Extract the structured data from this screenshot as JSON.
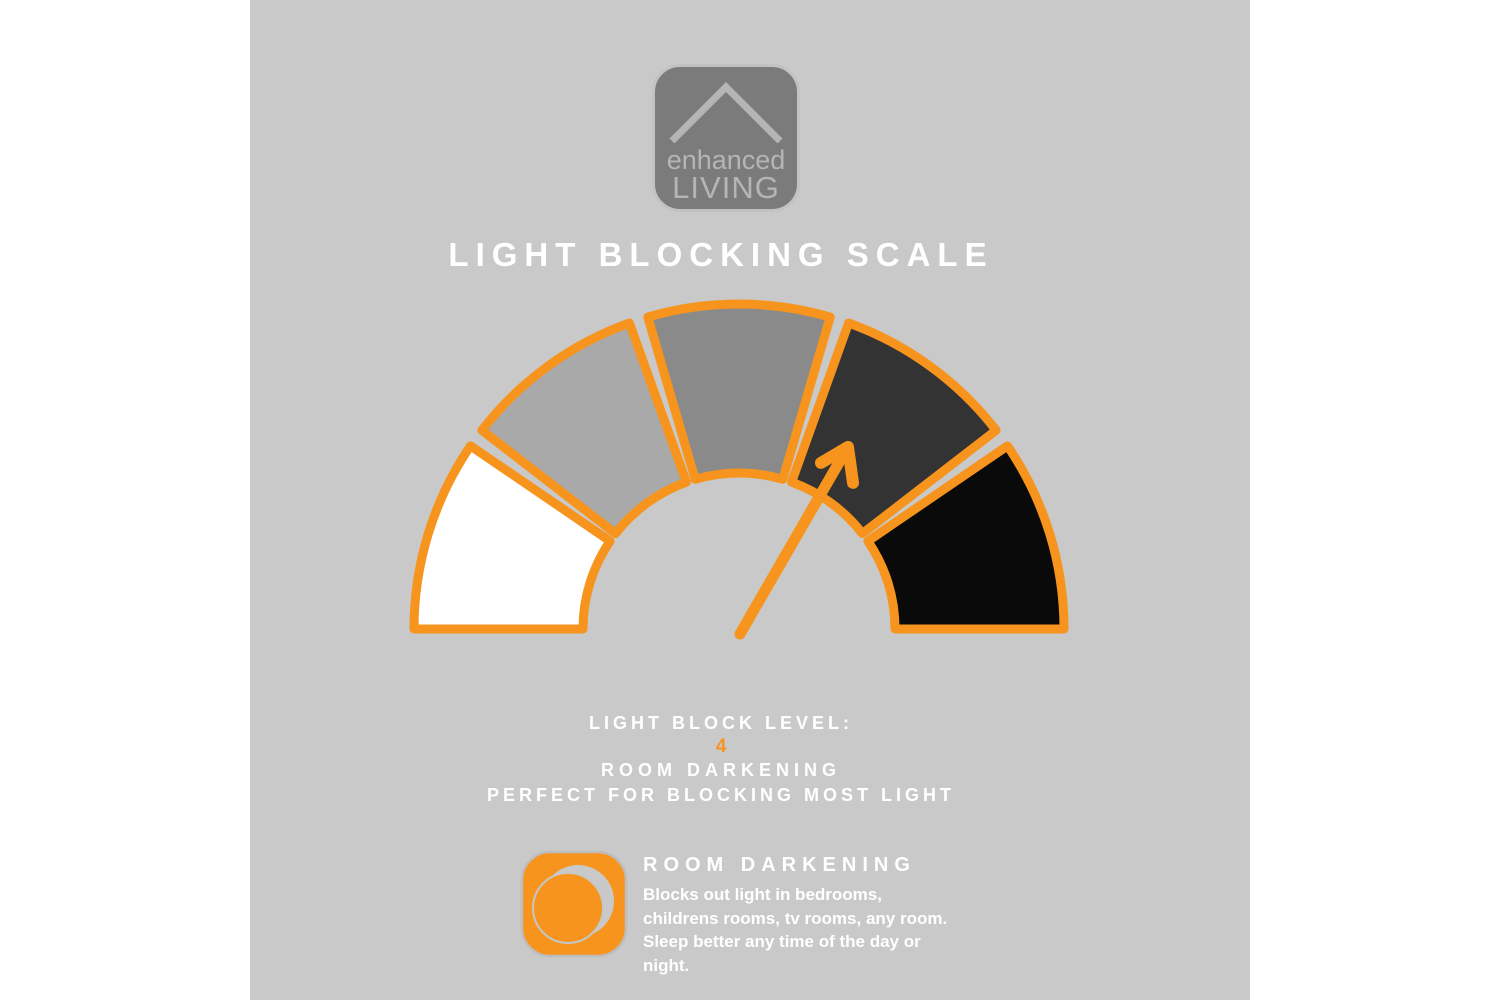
{
  "colors": {
    "page_background": "#ffffff",
    "canvas_background": "#c9c9c9",
    "accent_orange": "#f7941d",
    "text_white": "#ffffff",
    "logo_square": "#7b7b7b",
    "logo_text": "#b5b5b5"
  },
  "logo": {
    "line1": "enhanced",
    "line2": "LIVING"
  },
  "title": "LIGHT BLOCKING SCALE",
  "chart_data": {
    "type": "gauge",
    "title": "LIGHT BLOCKING SCALE",
    "arc_span_deg": 180,
    "segment_count": 5,
    "segments": [
      {
        "level": 1,
        "color": "#ffffff"
      },
      {
        "level": 2,
        "color": "#a9a9a9"
      },
      {
        "level": 3,
        "color": "#8a8a8a"
      },
      {
        "level": 4,
        "color": "#333333"
      },
      {
        "level": 5,
        "color": "#0a0a0a"
      }
    ],
    "outline_color": "#f7941d",
    "needle": {
      "color": "#f7941d",
      "points_to_level": 4,
      "angle_deg": 60
    }
  },
  "level": {
    "label": "LIGHT BLOCK LEVEL:",
    "value": "4",
    "name": "ROOM DARKENING",
    "tagline": "PERFECT FOR BLOCKING MOST LIGHT"
  },
  "feature": {
    "heading": "ROOM DARKENING",
    "body_lines": [
      "Blocks out light in bedrooms,",
      "childrens rooms, tv rooms, any room.",
      "Sleep better any time of the day or",
      "night."
    ]
  }
}
